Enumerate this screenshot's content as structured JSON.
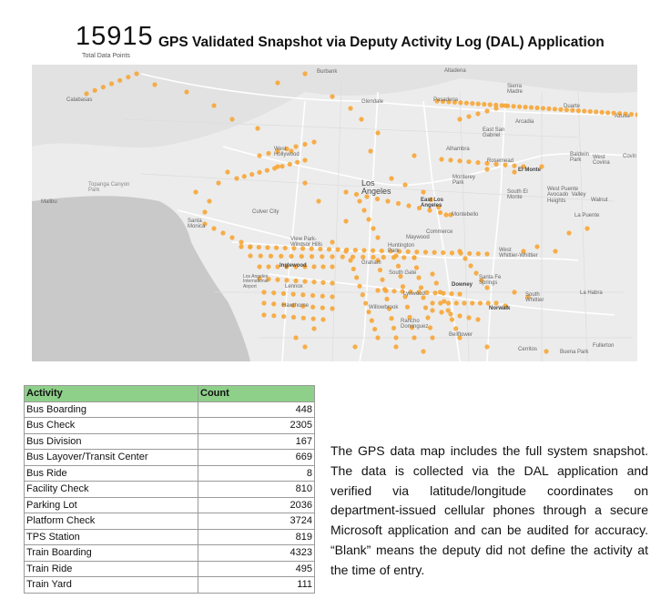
{
  "header": {
    "kpi_value": "15915",
    "kpi_caption": "Total Data Points",
    "title": "GPS Validated Snapshot via Deputy Activity Log (DAL) Application"
  },
  "map": {
    "marker_color": "#f7a636",
    "land_color": "#ececec",
    "water_color": "#c9c9c9",
    "labels": {
      "burbank": "Burbank",
      "calabasas": "Calabasas",
      "glendale": "Glendale",
      "pasadena": "Pasadena",
      "altadena": "Altadena",
      "sierra_madre": "Sierra\nMadre",
      "arcadia": "Arcadia",
      "duarte": "Duarte",
      "azusa": "Azusa",
      "east_san_gabriel": "East San\nGabriel",
      "alhambra": "Alhambra",
      "rosemead": "Rosemead",
      "el_monte": "El Monte",
      "baldwin_park": "Baldwin\nPark",
      "west_covina": "West\nCovina",
      "covina": "Covin",
      "west_hollywood": "West\nHollywood",
      "los_angeles": "Los\nAngeles",
      "monterey_park": "Monterey\nPark",
      "south_el_monte": "South El\nMonte",
      "west_puente_valley": "West Puente\nAvocado  Valley\nHeights",
      "walnut": "Walnut",
      "topanga": "Topanga Canyon\nPark",
      "malibu": "Malibu",
      "santa_monica": "Santa\nMonica",
      "culver_city": "Culver City",
      "east_la": "East Los\nAngeles",
      "montebello": "Montebello",
      "la_puente": "La Puente",
      "view_park": "View Park-\nWindsor Hills",
      "commerce": "Commerce",
      "maywood": "Maywood",
      "huntington_park": "Huntington\nPark",
      "graham": "Graham",
      "west_whittier": "West\nWhittier-Whittier",
      "inglewood": "Inglewood",
      "lax": "Los Angeles\nInternational\nAirport",
      "south_gate": "South Gate",
      "santa_fe_springs": "Santa Fe\nSprings",
      "lennox": "Lennox",
      "downey": "Downey",
      "la_habra": "La Habra",
      "hawthorne": "Hawthorne",
      "lynwood": "Lynwood",
      "south_whittier": "South\nWhittier",
      "willowbrook": "Willowbrook",
      "norwalk": "Norwalk",
      "rancho_dominguez": "Rancho\nDominguez",
      "bellflower": "Bellflower",
      "cerritos": "Cerritos",
      "buena_park": "Buena Park",
      "fullerton": "Fullerton"
    }
  },
  "table": {
    "headers": [
      "Activity",
      "Count"
    ],
    "rows": [
      {
        "activity": "Bus Boarding",
        "count": "448"
      },
      {
        "activity": "Bus Check",
        "count": "2305"
      },
      {
        "activity": "Bus Division",
        "count": "167"
      },
      {
        "activity": "Bus Layover/Transit Center",
        "count": "669"
      },
      {
        "activity": "Bus Ride",
        "count": "8"
      },
      {
        "activity": "Facility Check",
        "count": "810"
      },
      {
        "activity": "Parking Lot",
        "count": "2036"
      },
      {
        "activity": "Platform Check",
        "count": "3724"
      },
      {
        "activity": "TPS Station",
        "count": "819"
      },
      {
        "activity": "Train Boarding",
        "count": "4323"
      },
      {
        "activity": "Train Ride",
        "count": "495"
      },
      {
        "activity": "Train Yard",
        "count": "111"
      }
    ]
  },
  "note": {
    "text": "The GPS data map includes the full system snapshot. The data is collected via the DAL application and verified via latitude/longitude coordinates on department-issued cellular phones through a secure Microsoft application and can be audited for accuracy. “Blank” means the deputy did not define the activity at the time of entry."
  }
}
